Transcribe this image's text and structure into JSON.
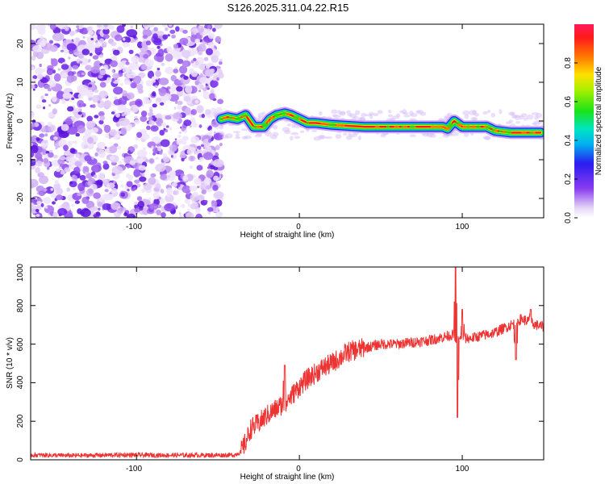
{
  "figure_title": "S126.2025.311.04.22.R15",
  "chart_data": [
    {
      "type": "heatmap",
      "title": "S126.2025.311.04.22.R15",
      "xlabel": "Height of straight line (km)",
      "ylabel": "Frequency (Hz)",
      "xlim": [
        -165,
        150
      ],
      "ylim": [
        -25,
        25
      ],
      "xticks": [
        -100,
        0,
        100
      ],
      "yticks": [
        -20,
        -10,
        0,
        10,
        20
      ],
      "colorbar": {
        "label": "Normalized spectral amplitude",
        "range": [
          0,
          1
        ],
        "ticks": [
          "0.0",
          "0.2",
          "0.4",
          "0.6",
          "0.8"
        ],
        "colormap": "rainbow (white → violet → blue → cyan → green → yellow → red)"
      },
      "noise_region": {
        "x": [
          -165,
          -48
        ],
        "description": "random speckle across all frequencies"
      },
      "tone_track": {
        "x": [
          -48,
          -44,
          -38,
          -33,
          -28,
          -22,
          -18,
          -14,
          -9,
          -5,
          0,
          5,
          10,
          20,
          40,
          60,
          80,
          85,
          88,
          91,
          95,
          100,
          105,
          115,
          120,
          130,
          140,
          148
        ],
        "freq_hz": [
          0.5,
          1,
          0.5,
          1.5,
          -1.5,
          -1.5,
          0.5,
          1.5,
          2,
          1.5,
          0.5,
          -0.5,
          -0.5,
          -1,
          -1.5,
          -1.5,
          -1.5,
          -1.5,
          -1.5,
          -2,
          0,
          -1.5,
          -1.5,
          -1.5,
          -2.5,
          -3,
          -3,
          -3
        ]
      }
    },
    {
      "type": "line",
      "xlabel": "Height of straight line (km)",
      "ylabel": "SNR (10 * v/v)",
      "xlim": [
        -165,
        150
      ],
      "ylim": [
        0,
        1000
      ],
      "xticks": [
        -100,
        0,
        100
      ],
      "yticks": [
        0,
        200,
        400,
        600,
        800,
        1000
      ],
      "color": "#ee3333",
      "series": [
        {
          "x": [
            -165,
            -140,
            -110,
            -80,
            -50,
            -40,
            -36,
            -33,
            -30,
            -25,
            -20,
            -15,
            -10,
            -5,
            0,
            5,
            10,
            15,
            20,
            25,
            30,
            40,
            50,
            60,
            70,
            80,
            90,
            95,
            97,
            100,
            105,
            110,
            115,
            120,
            125,
            130,
            133,
            136,
            140,
            145,
            150
          ],
          "values": [
            25,
            22,
            25,
            24,
            24,
            25,
            40,
            90,
            160,
            190,
            230,
            260,
            290,
            330,
            380,
            420,
            450,
            480,
            500,
            530,
            560,
            580,
            600,
            600,
            610,
            620,
            640,
            650,
            620,
            630,
            630,
            640,
            650,
            660,
            680,
            700,
            710,
            730,
            720,
            700,
            690
          ]
        }
      ],
      "spikes": [
        {
          "x": -9,
          "y": 490
        },
        {
          "x": 96,
          "y": 1000
        },
        {
          "x": 97,
          "y": 220
        },
        {
          "x": 100,
          "y": 780
        },
        {
          "x": 133,
          "y": 520
        },
        {
          "x": 142,
          "y": 780
        }
      ]
    }
  ]
}
